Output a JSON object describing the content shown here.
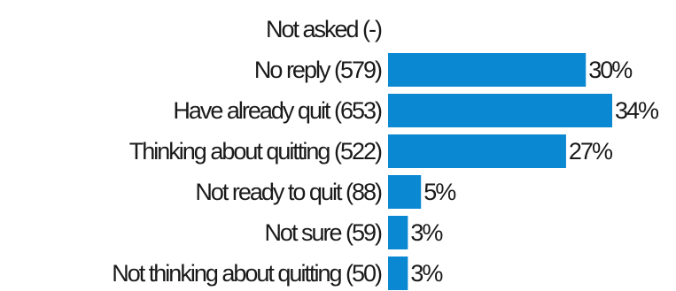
{
  "chart_data": {
    "type": "bar",
    "orientation": "horizontal",
    "categories": [
      "Not asked (-)",
      "No reply (579)",
      "Have already quit (653)",
      "Thinking about quitting (522)",
      "Not ready to quit (88)",
      "Not sure (59)",
      "Not thinking about quitting (50)"
    ],
    "values": [
      0,
      30,
      34,
      27,
      5,
      3,
      3
    ],
    "value_labels": [
      "",
      "30%",
      "34%",
      "27%",
      "5%",
      "3%",
      "3%"
    ],
    "bar_color": "#0a88d2",
    "title": "",
    "xlabel": "",
    "ylabel": "",
    "xlim": [
      0,
      34
    ],
    "grid": false,
    "legend": "none"
  }
}
